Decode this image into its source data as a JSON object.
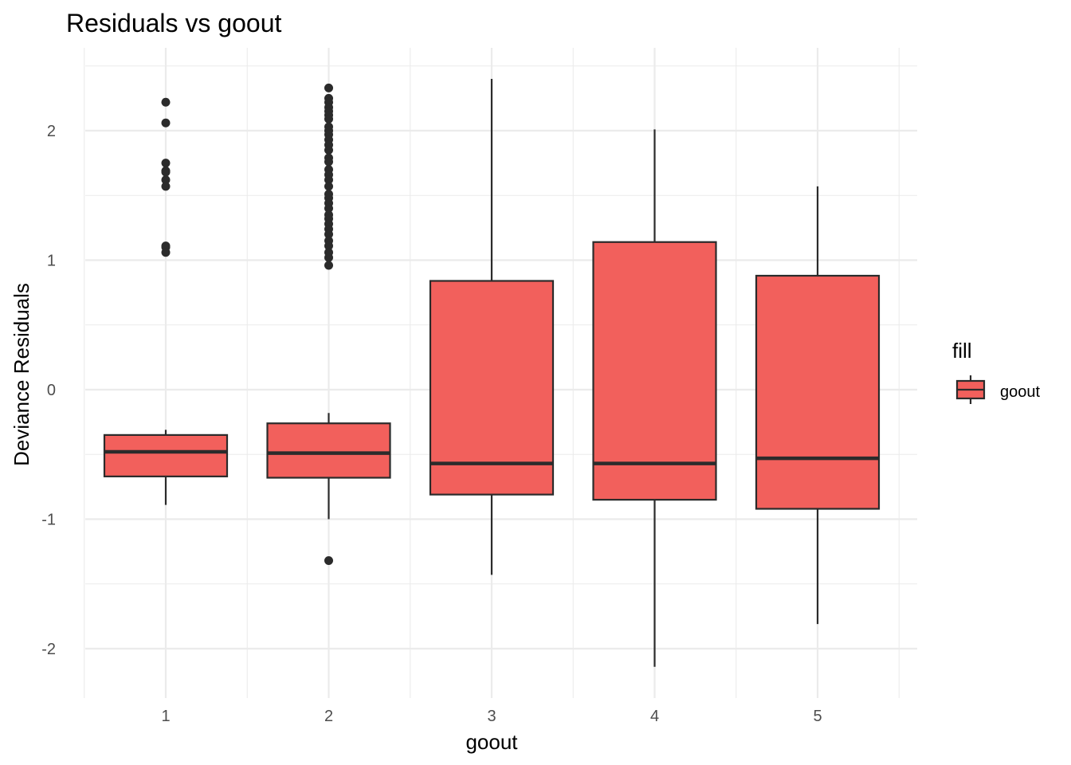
{
  "chart_data": {
    "type": "boxplot",
    "title": "Residuals vs goout",
    "xlabel": "goout",
    "ylabel": "Deviance Residuals",
    "ylim": [
      -2.35,
      2.6
    ],
    "y_ticks": [
      -2,
      -1,
      0,
      1,
      2
    ],
    "y_tick_labels": [
      "-2",
      "-1",
      "0",
      "1",
      "2"
    ],
    "grid": true,
    "legend": {
      "title": "fill",
      "position": "right",
      "entries": [
        "goout"
      ]
    },
    "fill_color": "#f2605c",
    "outline_color": "#2b2b2b",
    "categories": [
      "1",
      "2",
      "3",
      "4",
      "5"
    ],
    "boxes": [
      {
        "x": "1",
        "lower_whisker": -0.89,
        "q1": -0.67,
        "median": -0.48,
        "q3": -0.35,
        "upper_whisker": -0.31,
        "outliers": [
          2.22,
          2.06,
          1.75,
          1.69,
          1.68,
          1.62,
          1.57,
          1.11,
          1.1,
          1.06
        ]
      },
      {
        "x": "2",
        "lower_whisker": -1.0,
        "q1": -0.68,
        "median": -0.49,
        "q3": -0.26,
        "upper_whisker": -0.18,
        "outliers": [
          2.33,
          2.25,
          2.22,
          2.18,
          2.15,
          2.12,
          2.09,
          2.03,
          2.0,
          1.97,
          1.93,
          1.89,
          1.85,
          1.79,
          1.76,
          1.7,
          1.66,
          1.62,
          1.57,
          1.51,
          1.48,
          1.44,
          1.4,
          1.35,
          1.32,
          1.28,
          1.24,
          1.2,
          1.15,
          1.11,
          1.06,
          1.02,
          0.96,
          -1.32
        ]
      },
      {
        "x": "3",
        "lower_whisker": -1.43,
        "q1": -0.81,
        "median": -0.57,
        "q3": 0.84,
        "upper_whisker": 2.4,
        "outliers": []
      },
      {
        "x": "4",
        "lower_whisker": -2.14,
        "q1": -0.85,
        "median": -0.57,
        "q3": 1.14,
        "upper_whisker": 2.01,
        "outliers": []
      },
      {
        "x": "5",
        "lower_whisker": -1.81,
        "q1": -0.92,
        "median": -0.53,
        "q3": 0.88,
        "upper_whisker": 1.57,
        "outliers": []
      }
    ]
  }
}
